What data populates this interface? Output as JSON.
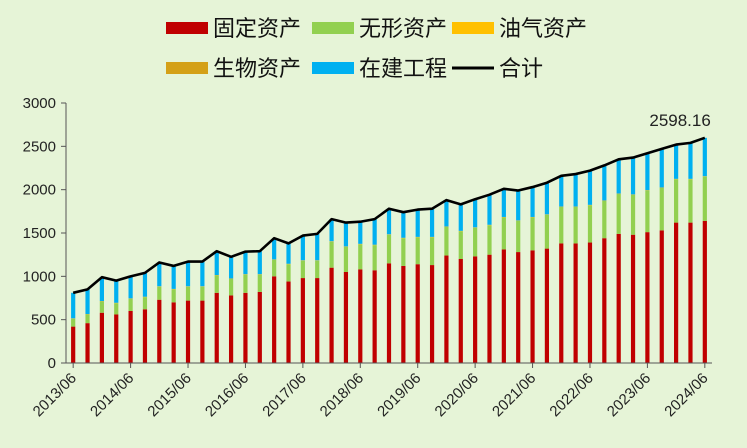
{
  "chart_data": {
    "type": "bar",
    "stacked": true,
    "x": [
      "2013/06",
      "2013/09",
      "2013/12",
      "2014/03",
      "2014/06",
      "2014/09",
      "2014/12",
      "2015/03",
      "2015/06",
      "2015/09",
      "2015/12",
      "2016/03",
      "2016/06",
      "2016/09",
      "2016/12",
      "2017/03",
      "2017/06",
      "2017/09",
      "2017/12",
      "2018/03",
      "2018/06",
      "2018/09",
      "2018/12",
      "2019/03",
      "2019/06",
      "2019/09",
      "2019/12",
      "2020/03",
      "2020/06",
      "2020/09",
      "2020/12",
      "2021/03",
      "2021/06",
      "2021/09",
      "2021/12",
      "2022/03",
      "2022/06",
      "2022/09",
      "2022/12",
      "2023/03",
      "2023/06",
      "2023/09",
      "2023/12",
      "2024/03",
      "2024/06"
    ],
    "x_tick_labels": [
      "2013/06",
      "2014/06",
      "2015/06",
      "2016/06",
      "2017/06",
      "2018/06",
      "2019/06",
      "2020/06",
      "2021/06",
      "2022/06",
      "2023/06",
      "2024/06"
    ],
    "series": [
      {
        "name": "固定资产",
        "color": "#c00000",
        "values": [
          420,
          460,
          580,
          560,
          600,
          620,
          730,
          700,
          720,
          720,
          810,
          780,
          810,
          820,
          1000,
          940,
          980,
          980,
          1100,
          1050,
          1080,
          1070,
          1150,
          1120,
          1140,
          1130,
          1240,
          1200,
          1230,
          1250,
          1310,
          1280,
          1300,
          1320,
          1380,
          1380,
          1390,
          1440,
          1490,
          1480,
          1510,
          1530,
          1620,
          1620,
          1640
        ]
      },
      {
        "name": "无形资产",
        "color": "#92d050",
        "values": [
          90,
          100,
          130,
          130,
          140,
          140,
          150,
          150,
          160,
          160,
          200,
          190,
          210,
          200,
          190,
          200,
          200,
          200,
          300,
          290,
          290,
          290,
          330,
          320,
          310,
          320,
          330,
          320,
          330,
          340,
          370,
          360,
          380,
          390,
          420,
          420,
          430,
          430,
          460,
          460,
          480,
          490,
          500,
          500,
          510
        ]
      },
      {
        "name": "油气资产",
        "color": "#ffc000",
        "values": [
          2,
          2,
          2,
          2,
          2,
          2,
          2,
          2,
          2,
          2,
          2,
          2,
          2,
          2,
          2,
          2,
          2,
          2,
          2,
          2,
          2,
          2,
          2,
          2,
          2,
          2,
          2,
          2,
          2,
          2,
          2,
          2,
          2,
          2,
          2,
          2,
          2,
          2,
          2,
          2,
          2,
          2,
          2,
          2,
          2
        ]
      },
      {
        "name": "生物资产",
        "color": "#d4a017",
        "values": [
          3,
          3,
          3,
          3,
          3,
          3,
          3,
          3,
          3,
          3,
          3,
          3,
          3,
          3,
          3,
          3,
          3,
          3,
          3,
          3,
          3,
          3,
          3,
          3,
          3,
          3,
          3,
          3,
          3,
          3,
          3,
          3,
          3,
          3,
          3,
          3,
          3,
          3,
          3,
          3,
          3,
          3,
          3,
          3,
          3
        ]
      },
      {
        "name": "在建工程",
        "color": "#00b0f0",
        "values": [
          295,
          285,
          275,
          255,
          255,
          275,
          275,
          265,
          285,
          285,
          275,
          250,
          260,
          265,
          245,
          235,
          285,
          305,
          255,
          275,
          255,
          295,
          295,
          295,
          315,
          325,
          305,
          305,
          325,
          347,
          325,
          345,
          345,
          365,
          355,
          375,
          395,
          405,
          395,
          425,
          425,
          445,
          395,
          415,
          443
        ]
      }
    ],
    "line": {
      "name": "合计",
      "color": "#000000",
      "values": [
        810,
        850,
        990,
        950,
        1000,
        1040,
        1160,
        1120,
        1170,
        1170,
        1290,
        1225,
        1285,
        1290,
        1440,
        1380,
        1470,
        1490,
        1660,
        1620,
        1630,
        1660,
        1780,
        1740,
        1770,
        1780,
        1880,
        1830,
        1890,
        1942,
        2010,
        1990,
        2030,
        2080,
        2160,
        2180,
        2220,
        2280,
        2350,
        2370,
        2420,
        2470,
        2520,
        2540,
        2598.16
      ]
    },
    "annotation": {
      "label": "2598.16",
      "index": 44
    },
    "ylim": [
      0,
      3000
    ],
    "yticks": [
      0,
      500,
      1000,
      1500,
      2000,
      2500,
      3000
    ],
    "title": "",
    "xlabel": "",
    "ylabel": "",
    "grid": false,
    "legend_position": "top"
  }
}
